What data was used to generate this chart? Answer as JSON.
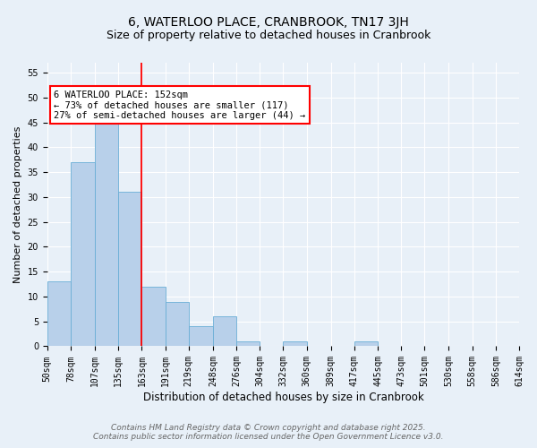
{
  "title": "6, WATERLOO PLACE, CRANBROOK, TN17 3JH",
  "subtitle": "Size of property relative to detached houses in Cranbrook",
  "xlabel": "Distribution of detached houses by size in Cranbrook",
  "ylabel": "Number of detached properties",
  "bar_left_edges": [
    50,
    78,
    107,
    135,
    163,
    191,
    219,
    248,
    276,
    304,
    332,
    360,
    389,
    417,
    445,
    473,
    501,
    530,
    558,
    586
  ],
  "bar_widths": [
    28,
    29,
    28,
    28,
    28,
    28,
    29,
    28,
    28,
    28,
    28,
    29,
    28,
    28,
    28,
    28,
    29,
    28,
    28,
    28
  ],
  "bar_heights": [
    13,
    37,
    46,
    31,
    12,
    9,
    4,
    6,
    1,
    0,
    1,
    0,
    0,
    1,
    0,
    0,
    0,
    0,
    0,
    0
  ],
  "tick_labels": [
    "50sqm",
    "78sqm",
    "107sqm",
    "135sqm",
    "163sqm",
    "191sqm",
    "219sqm",
    "248sqm",
    "276sqm",
    "304sqm",
    "332sqm",
    "360sqm",
    "389sqm",
    "417sqm",
    "445sqm",
    "473sqm",
    "501sqm",
    "530sqm",
    "558sqm",
    "586sqm",
    "614sqm"
  ],
  "bar_color": "#b8d0ea",
  "bar_edge_color": "#6aaed6",
  "vline_x": 163,
  "vline_color": "red",
  "annotation_text": "6 WATERLOO PLACE: 152sqm\n← 73% of detached houses are smaller (117)\n27% of semi-detached houses are larger (44) →",
  "annotation_box_color": "white",
  "annotation_box_edge_color": "red",
  "ylim": [
    0,
    57
  ],
  "yticks": [
    0,
    5,
    10,
    15,
    20,
    25,
    30,
    35,
    40,
    45,
    50,
    55
  ],
  "background_color": "#e8f0f8",
  "plot_bg_color": "#e8f0f8",
  "footer_line1": "Contains HM Land Registry data © Crown copyright and database right 2025.",
  "footer_line2": "Contains public sector information licensed under the Open Government Licence v3.0.",
  "title_fontsize": 10,
  "subtitle_fontsize": 9,
  "xlabel_fontsize": 8.5,
  "ylabel_fontsize": 8,
  "tick_fontsize": 7,
  "footer_fontsize": 6.5,
  "annotation_fontsize": 7.5
}
